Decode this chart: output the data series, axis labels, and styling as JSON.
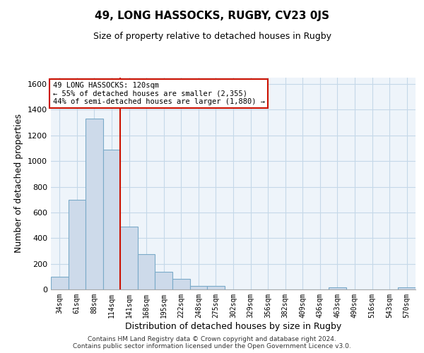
{
  "title": "49, LONG HASSOCKS, RUGBY, CV23 0JS",
  "subtitle": "Size of property relative to detached houses in Rugby",
  "xlabel": "Distribution of detached houses by size in Rugby",
  "ylabel": "Number of detached properties",
  "bar_color": "#cddaea",
  "bar_edge_color": "#7aaac8",
  "grid_color": "#c5d8e8",
  "bg_color": "#eef4fa",
  "categories": [
    "34sqm",
    "61sqm",
    "88sqm",
    "114sqm",
    "141sqm",
    "168sqm",
    "195sqm",
    "222sqm",
    "248sqm",
    "275sqm",
    "302sqm",
    "329sqm",
    "356sqm",
    "382sqm",
    "409sqm",
    "436sqm",
    "463sqm",
    "490sqm",
    "516sqm",
    "543sqm",
    "570sqm"
  ],
  "values": [
    100,
    700,
    1330,
    1090,
    490,
    275,
    140,
    80,
    30,
    25,
    0,
    0,
    0,
    0,
    0,
    0,
    15,
    0,
    0,
    0,
    15
  ],
  "ylim": [
    0,
    1650
  ],
  "yticks": [
    0,
    200,
    400,
    600,
    800,
    1000,
    1200,
    1400,
    1600
  ],
  "vline_position": 3.5,
  "vline_color": "#cc1100",
  "annotation_title": "49 LONG HASSOCKS: 120sqm",
  "annotation_line1": "← 55% of detached houses are smaller (2,355)",
  "annotation_line2": "44% of semi-detached houses are larger (1,880) →",
  "annotation_box_edge": "#cc1100",
  "footer1": "Contains HM Land Registry data © Crown copyright and database right 2024.",
  "footer2": "Contains public sector information licensed under the Open Government Licence v3.0."
}
